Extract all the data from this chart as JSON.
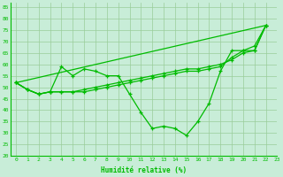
{
  "xlabel": "Humidité relative (%)",
  "background_color": "#c8edd8",
  "grid_color": "#99cc99",
  "line_color": "#00bb00",
  "xlim": [
    -0.5,
    23
  ],
  "ylim": [
    20,
    87
  ],
  "yticks": [
    20,
    25,
    30,
    35,
    40,
    45,
    50,
    55,
    60,
    65,
    70,
    75,
    80,
    85
  ],
  "xticks": [
    0,
    1,
    2,
    3,
    4,
    5,
    6,
    7,
    8,
    9,
    10,
    11,
    12,
    13,
    14,
    15,
    16,
    17,
    18,
    19,
    20,
    21,
    22,
    23
  ],
  "line1_x": [
    0,
    1,
    2,
    3,
    4,
    5,
    6,
    7,
    8,
    9,
    10,
    11,
    12,
    13,
    14,
    15,
    16,
    17,
    18,
    19,
    20,
    21,
    22
  ],
  "line1_y": [
    52,
    49,
    47,
    48,
    59,
    55,
    58,
    57,
    55,
    55,
    47,
    39,
    32,
    33,
    32,
    29,
    35,
    43,
    57,
    66,
    66,
    68,
    77
  ],
  "line2_x": [
    0,
    22
  ],
  "line2_y": [
    52,
    77
  ],
  "line3_x": [
    0,
    1,
    2,
    3,
    4,
    5,
    6,
    7,
    8,
    9,
    10,
    11,
    12,
    13,
    14,
    15,
    16,
    17,
    18,
    19,
    20,
    21,
    22
  ],
  "line3_y": [
    52,
    49,
    47,
    48,
    48,
    48,
    49,
    50,
    51,
    52,
    53,
    54,
    55,
    56,
    57,
    58,
    58,
    59,
    60,
    62,
    65,
    66,
    77
  ],
  "line4_x": [
    0,
    1,
    2,
    3,
    4,
    5,
    6,
    7,
    8,
    9,
    10,
    11,
    12,
    13,
    14,
    15,
    16,
    17,
    18,
    19,
    20,
    21,
    22
  ],
  "line4_y": [
    52,
    49,
    47,
    48,
    48,
    48,
    48,
    49,
    50,
    51,
    52,
    53,
    54,
    55,
    56,
    57,
    57,
    58,
    59,
    63,
    66,
    66,
    77
  ],
  "figwidth": 3.2,
  "figheight": 2.0,
  "dpi": 100
}
